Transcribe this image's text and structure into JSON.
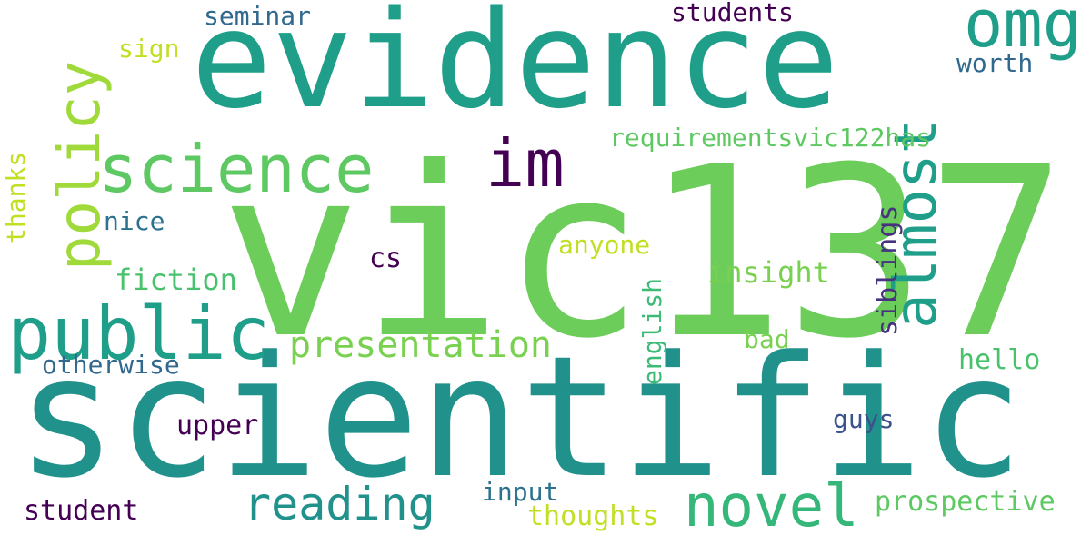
{
  "words": {
    "vic137": {
      "text": "vic137",
      "color": "#6ccd5a"
    },
    "scientific": {
      "text": "scientific",
      "color": "#21918c"
    },
    "evidence": {
      "text": "evidence",
      "color": "#1f9e89"
    },
    "science": {
      "text": "science",
      "color": "#5ec962"
    },
    "public": {
      "text": "public",
      "color": "#1f9e89"
    },
    "policy": {
      "text": "policy",
      "color": "#9fda3a"
    },
    "almost": {
      "text": "almost",
      "color": "#1f9e89"
    },
    "omg": {
      "text": "omg",
      "color": "#1f9e89"
    },
    "im": {
      "text": "im",
      "color": "#440154"
    },
    "novel": {
      "text": "novel",
      "color": "#35b779"
    },
    "reading": {
      "text": "reading",
      "color": "#21918c"
    },
    "presentation": {
      "text": "presentation",
      "color": "#7ad151"
    },
    "requirementsvic122has": {
      "text": "requirementsvic122has",
      "color": "#5ec962"
    },
    "seminar": {
      "text": "seminar",
      "color": "#31688e"
    },
    "students": {
      "text": "students",
      "color": "#440154"
    },
    "worth": {
      "text": "worth",
      "color": "#31688e"
    },
    "sign": {
      "text": "sign",
      "color": "#c2df23"
    },
    "thanks": {
      "text": "thanks",
      "color": "#c2df23"
    },
    "nice": {
      "text": "nice",
      "color": "#2c728e"
    },
    "fiction": {
      "text": "fiction",
      "color": "#4ac16d"
    },
    "cs": {
      "text": "cs",
      "color": "#440154"
    },
    "anyone": {
      "text": "anyone",
      "color": "#c2df23"
    },
    "english": {
      "text": "english",
      "color": "#3bbb75"
    },
    "insight": {
      "text": "insight",
      "color": "#7ad151"
    },
    "siblings": {
      "text": "siblings",
      "color": "#46327e"
    },
    "otherwise": {
      "text": "otherwise",
      "color": "#31688e"
    },
    "bad": {
      "text": "bad",
      "color": "#7ad151"
    },
    "hello": {
      "text": "hello",
      "color": "#4ac16d"
    },
    "upper": {
      "text": "upper",
      "color": "#440154"
    },
    "guys": {
      "text": "guys",
      "color": "#3b528b"
    },
    "input": {
      "text": "input",
      "color": "#2c728e"
    },
    "student": {
      "text": "student",
      "color": "#440154"
    },
    "thoughts": {
      "text": "thoughts",
      "color": "#c2df23"
    },
    "prospective": {
      "text": "prospective",
      "color": "#5ec962"
    }
  }
}
